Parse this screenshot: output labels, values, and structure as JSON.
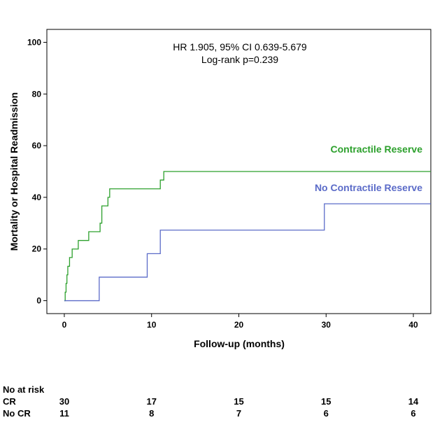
{
  "chart_data": {
    "type": "line",
    "step": true,
    "xlabel": "Follow-up (months)",
    "ylabel": "Mortality or Hospital Readmission",
    "xlim": [
      -2,
      42
    ],
    "ylim": [
      -5,
      105
    ],
    "xticks": [
      0,
      10,
      20,
      30,
      40
    ],
    "yticks": [
      0,
      20,
      40,
      60,
      80,
      100
    ],
    "grid": false,
    "annotations": [
      "HR 1.905, 95% CI 0.639-5.679",
      "Log-rank p=0.239"
    ],
    "series": [
      {
        "name": "Contractile Reserve",
        "color": "#2ca02c",
        "x": [
          0,
          0.1,
          0.2,
          0.3,
          0.4,
          0.6,
          0.9,
          1.6,
          2.8,
          4.1,
          4.3,
          5.0,
          5.2,
          11.0,
          11.4,
          42
        ],
        "y": [
          0,
          3.3,
          6.7,
          10,
          13.3,
          16.7,
          20,
          23.3,
          26.7,
          30,
          36.7,
          40,
          43.3,
          46.7,
          50,
          50
        ]
      },
      {
        "name": "No Contractile Reserve",
        "color": "#5b6bc8",
        "x": [
          0,
          4.0,
          9.5,
          11.0,
          29.8,
          42
        ],
        "y": [
          0,
          9.1,
          18.2,
          27.3,
          37.5,
          37.5
        ]
      }
    ]
  },
  "risk_table": {
    "header": "No at risk",
    "times": [
      0,
      10,
      20,
      30,
      40
    ],
    "rows": [
      {
        "label": "CR",
        "values": [
          "30",
          "17",
          "15",
          "15",
          "14"
        ]
      },
      {
        "label": "No CR",
        "values": [
          "11",
          "8",
          "7",
          "6",
          "6"
        ]
      }
    ]
  }
}
